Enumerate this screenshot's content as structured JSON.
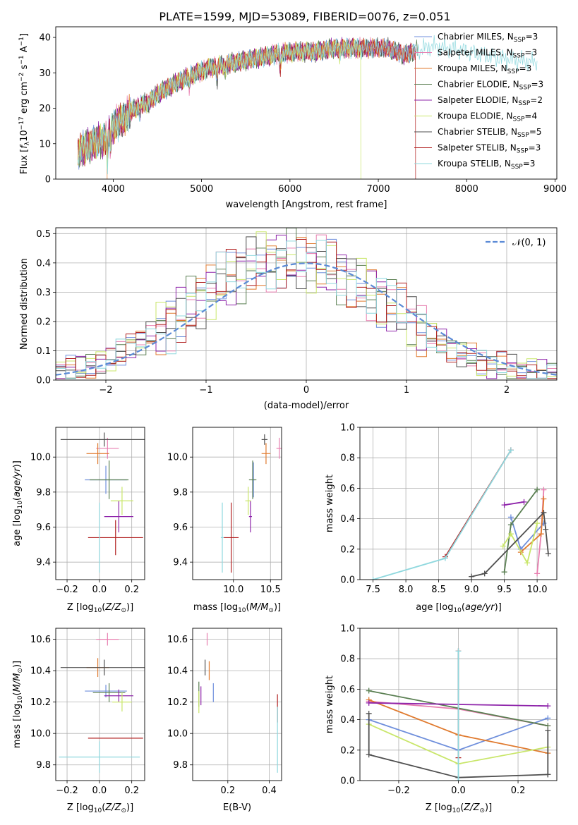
{
  "figure_title": "PLATE=1599, MJD=53089, FIBERID=0076, z=0.051",
  "colors": {
    "chabrier_miles": "#6f8fdc",
    "salpeter_miles": "#e87fb0",
    "kroupa_miles": "#e07a2e",
    "chabrier_elodie": "#5a7f52",
    "salpeter_elodie": "#8e24aa",
    "kroupa_elodie": "#c9e66a",
    "chabrier_stelib": "#4f4f4f",
    "salpeter_stelib": "#b22222",
    "kroupa_stelib": "#8fd8de",
    "normal": "#5b8ad6"
  },
  "chart_data": [
    {
      "id": "spectrum",
      "type": "line",
      "xlabel": "wavelength [Angstrom, rest frame]",
      "ylabel": "Flux [f_λ10^-17 erg cm^-2 s^-1 A^-1]",
      "xlim": [
        3350,
        9020
      ],
      "ylim": [
        0,
        43
      ],
      "xticks": [
        4000,
        5000,
        6000,
        7000,
        8000,
        9000
      ],
      "yticks": [
        0,
        10,
        20,
        30,
        40
      ],
      "grid": false,
      "legend_position": "upper-right",
      "legend": [
        "Chabrier MILES, N_SSP=3",
        "Salpeter MILES, N_SSP=3",
        "Kroupa MILES, N_SSP=3",
        "Chabrier ELODIE, N_SSP=3",
        "Salpeter ELODIE, N_SSP=2",
        "Kroupa ELODIE, N_SSP=4",
        "Chabrier STELIB, N_SSP=5",
        "Salpeter STELIB, N_SSP=3",
        "Kroupa STELIB, N_SSP=3"
      ],
      "continuum": {
        "x": [
          3600,
          3700,
          3800,
          3900,
          4000,
          4100,
          4200,
          4300,
          4400,
          4500,
          4700,
          4900,
          5100,
          5300,
          5500,
          5700,
          5900,
          6100,
          6300,
          6500,
          6700,
          6900,
          7100,
          7300,
          7400,
          7600,
          7800,
          8000,
          8200,
          8400,
          8600,
          8800
        ],
        "y": [
          8,
          9,
          10.5,
          11,
          15,
          17,
          19,
          21,
          21.5,
          24,
          27,
          29.5,
          31.5,
          32.5,
          33.5,
          34.5,
          35.5,
          36,
          36,
          37,
          37,
          37,
          37,
          35,
          36,
          37.5,
          37,
          36,
          35,
          34,
          33.5,
          33
        ]
      },
      "series_end_wavelength": [
        7420,
        7430,
        7400,
        7450,
        7400,
        6800,
        7420,
        7420,
        8800
      ],
      "dropouts": [
        {
          "series": "Kroupa ELODIE",
          "wavelength": 6800
        },
        {
          "series": "Salpeter STELIB",
          "wavelength": 7420
        },
        {
          "series": "Kroupa MILES",
          "wavelength": 3930
        }
      ]
    },
    {
      "id": "residual_histogram",
      "type": "line",
      "xlabel": "(data-model)/error",
      "ylabel": "Normed distribution",
      "xlim": [
        -2.5,
        2.5
      ],
      "ylim": [
        0,
        0.52
      ],
      "xticks": [
        -2,
        -1,
        0,
        1,
        2
      ],
      "yticks": [
        0.0,
        0.1,
        0.2,
        0.3,
        0.4,
        0.5
      ],
      "grid": true,
      "legend_position": "upper-right",
      "legend": [
        "N(0,1)"
      ],
      "bin_width": 0.1,
      "series_histogram": {
        "x_centers": [
          -2.45,
          -2.35,
          -2.25,
          -2.15,
          -2.05,
          -1.95,
          -1.85,
          -1.75,
          -1.65,
          -1.55,
          -1.45,
          -1.35,
          -1.25,
          -1.15,
          -1.05,
          -0.95,
          -0.85,
          -0.75,
          -0.65,
          -0.55,
          -0.45,
          -0.35,
          -0.25,
          -0.15,
          -0.05,
          0.05,
          0.15,
          0.25,
          0.35,
          0.45,
          0.55,
          0.65,
          0.75,
          0.85,
          0.95,
          1.05,
          1.15,
          1.25,
          1.35,
          1.45,
          1.55,
          1.65,
          1.75,
          1.85,
          1.95,
          2.05,
          2.15,
          2.25,
          2.35,
          2.45
        ],
        "values": [
          0.03,
          0.04,
          0.04,
          0.05,
          0.07,
          0.07,
          0.09,
          0.12,
          0.13,
          0.15,
          0.17,
          0.2,
          0.22,
          0.25,
          0.28,
          0.31,
          0.33,
          0.35,
          0.37,
          0.39,
          0.4,
          0.41,
          0.41,
          0.41,
          0.4,
          0.4,
          0.39,
          0.38,
          0.36,
          0.34,
          0.32,
          0.3,
          0.28,
          0.25,
          0.23,
          0.2,
          0.17,
          0.15,
          0.13,
          0.11,
          0.09,
          0.08,
          0.06,
          0.05,
          0.05,
          0.04,
          0.03,
          0.03,
          0.02,
          0.02
        ]
      }
    },
    {
      "id": "z_vs_age",
      "type": "scatter",
      "xlabel": "Z [log10(Z/Z☉)]",
      "ylabel": "age [log10(age/yr)]",
      "xlim": [
        -0.27,
        0.28
      ],
      "ylim": [
        9.3,
        10.17
      ],
      "xticks": [
        -0.2,
        0.0,
        0.2
      ],
      "yticks": [
        9.4,
        9.6,
        9.8,
        10.0
      ],
      "grid": true,
      "points": [
        {
          "series": "Chabrier MILES",
          "x": 0.04,
          "y": 9.87,
          "xerr": 0.13,
          "yerr": 0.08
        },
        {
          "series": "Salpeter MILES",
          "x": 0.05,
          "y": 10.05,
          "xerr": 0.07,
          "yerr": 0.06
        },
        {
          "series": "Kroupa MILES",
          "x": -0.01,
          "y": 10.02,
          "xerr": 0.07,
          "yerr": 0.06
        },
        {
          "series": "Chabrier ELODIE",
          "x": 0.06,
          "y": 9.87,
          "xerr": 0.12,
          "yerr": 0.11
        },
        {
          "series": "Salpeter ELODIE",
          "x": 0.12,
          "y": 9.66,
          "xerr": 0.09,
          "yerr": 0.09
        },
        {
          "series": "Kroupa ELODIE",
          "x": 0.14,
          "y": 9.75,
          "xerr": 0.07,
          "yerr": 0.08
        },
        {
          "series": "Chabrier STELIB",
          "x": 0.03,
          "y": 10.1,
          "xerr": 0.27,
          "yerr": 0.04
        },
        {
          "series": "Salpeter STELIB",
          "x": 0.1,
          "y": 9.54,
          "xerr": 0.17,
          "yerr": 0.1
        },
        {
          "series": "Kroupa STELIB",
          "x": 0.0,
          "y": 9.54,
          "xerr": 0.0,
          "yerr": 0.2
        }
      ]
    },
    {
      "id": "mass_vs_age",
      "type": "scatter",
      "xlabel": "mass [log10(M/M☉)]",
      "ylabel": "",
      "xlim": [
        9.45,
        10.65
      ],
      "ylim": [
        9.3,
        10.17
      ],
      "xticks": [
        10.0,
        10.5
      ],
      "yticks": [
        9.4,
        9.6,
        9.8,
        10.0
      ],
      "grid": true,
      "points": [
        {
          "series": "Chabrier MILES",
          "x": 10.27,
          "y": 9.87,
          "xerr": 0.02,
          "yerr": 0.1
        },
        {
          "series": "Salpeter MILES",
          "x": 10.62,
          "y": 10.05,
          "xerr": 0.04,
          "yerr": 0.06
        },
        {
          "series": "Kroupa MILES",
          "x": 10.44,
          "y": 10.02,
          "xerr": 0.06,
          "yerr": 0.06
        },
        {
          "series": "Chabrier ELODIE",
          "x": 10.26,
          "y": 9.87,
          "xerr": 0.05,
          "yerr": 0.11
        },
        {
          "series": "Salpeter ELODIE",
          "x": 10.23,
          "y": 9.66,
          "xerr": 0.02,
          "yerr": 0.09
        },
        {
          "series": "Kroupa ELODIE",
          "x": 10.2,
          "y": 9.75,
          "xerr": 0.04,
          "yerr": 0.08
        },
        {
          "series": "Chabrier STELIB",
          "x": 10.42,
          "y": 10.1,
          "xerr": 0.04,
          "yerr": 0.03
        },
        {
          "series": "Salpeter STELIB",
          "x": 9.97,
          "y": 9.54,
          "xerr": 0.1,
          "yerr": 0.2
        },
        {
          "series": "Kroupa STELIB",
          "x": 9.85,
          "y": 9.54,
          "xerr": 0.02,
          "yerr": 0.2
        }
      ]
    },
    {
      "id": "age_vs_mass_weight",
      "type": "line",
      "xlabel": "age [log10(age/yr)]",
      "ylabel": "mass weight",
      "xlim": [
        7.3,
        10.3
      ],
      "ylim": [
        0,
        1.0
      ],
      "xticks": [
        7.5,
        8.0,
        8.5,
        9.0,
        9.5,
        10.0
      ],
      "yticks": [
        0.0,
        0.2,
        0.4,
        0.6,
        0.8,
        1.0
      ],
      "grid": true,
      "series": [
        {
          "key": "chabrier_miles",
          "x": [
            9.6,
            9.75,
            10.1
          ],
          "y": [
            0.41,
            0.2,
            0.37
          ]
        },
        {
          "key": "salpeter_miles",
          "x": [
            10.0,
            10.06,
            10.1
          ],
          "y": [
            0.04,
            0.3,
            0.59
          ]
        },
        {
          "key": "kroupa_miles",
          "x": [
            9.75,
            10.06,
            10.1
          ],
          "y": [
            0.18,
            0.3,
            0.53
          ]
        },
        {
          "key": "chabrier_elodie",
          "x": [
            9.5,
            9.6,
            10.0
          ],
          "y": [
            0.05,
            0.36,
            0.59
          ]
        },
        {
          "key": "salpeter_elodie",
          "x": [
            9.5,
            9.8
          ],
          "y": [
            0.49,
            0.51
          ]
        },
        {
          "key": "kroupa_elodie",
          "x": [
            9.48,
            9.6,
            9.85,
            10.0
          ],
          "y": [
            0.22,
            0.3,
            0.11,
            0.37
          ]
        },
        {
          "key": "chabrier_stelib",
          "x": [
            9.0,
            9.2,
            10.1,
            10.13,
            10.17
          ],
          "y": [
            0.02,
            0.04,
            0.44,
            0.33,
            0.17
          ]
        },
        {
          "key": "salpeter_stelib",
          "x": [
            8.6,
            9.6
          ],
          "y": [
            0.15,
            0.85
          ]
        },
        {
          "key": "kroupa_stelib",
          "x": [
            7.5,
            8.6,
            9.6
          ],
          "y": [
            0.0,
            0.14,
            0.85
          ]
        }
      ]
    },
    {
      "id": "z_vs_mass",
      "type": "scatter",
      "xlabel": "Z [log10(Z/Z☉)]",
      "ylabel": "mass [log10(M/M☉)]",
      "xlim": [
        -0.27,
        0.28
      ],
      "ylim": [
        9.7,
        10.67
      ],
      "xticks": [
        -0.2,
        0.0,
        0.2
      ],
      "yticks": [
        9.8,
        10.0,
        10.2,
        10.4,
        10.6
      ],
      "grid": true,
      "points": [
        {
          "series": "Chabrier MILES",
          "x": 0.04,
          "y": 10.27,
          "xerr": 0.13,
          "yerr": 0.04
        },
        {
          "series": "Salpeter MILES",
          "x": 0.05,
          "y": 10.6,
          "xerr": 0.07,
          "yerr": 0.04
        },
        {
          "series": "Kroupa MILES",
          "x": -0.01,
          "y": 10.42,
          "xerr": 0.07,
          "yerr": 0.06
        },
        {
          "series": "Chabrier ELODIE",
          "x": 0.06,
          "y": 10.26,
          "xerr": 0.1,
          "yerr": 0.06
        },
        {
          "series": "Salpeter ELODIE",
          "x": 0.12,
          "y": 10.24,
          "xerr": 0.09,
          "yerr": 0.04
        },
        {
          "series": "Kroupa ELODIE",
          "x": 0.14,
          "y": 10.2,
          "xerr": 0.06,
          "yerr": 0.06
        },
        {
          "series": "Chabrier STELIB",
          "x": 0.03,
          "y": 10.42,
          "xerr": 0.27,
          "yerr": 0.05
        },
        {
          "series": "Salpeter STELIB",
          "x": 0.1,
          "y": 9.97,
          "xerr": 0.17,
          "yerr": 0.0
        },
        {
          "series": "Kroupa STELIB",
          "x": 0.0,
          "y": 9.85,
          "xerr": 0.25,
          "yerr": 0.1
        }
      ]
    },
    {
      "id": "ebv_vs_mass",
      "type": "scatter",
      "xlabel": "E(B-V)",
      "ylabel": "",
      "xlim": [
        0.03,
        0.46
      ],
      "ylim": [
        9.7,
        10.67
      ],
      "xticks": [
        0.2,
        0.4
      ],
      "yticks": [
        9.8,
        10.0,
        10.2,
        10.4,
        10.6
      ],
      "grid": true,
      "points": [
        {
          "series": "Chabrier MILES",
          "x": 0.13,
          "y": 10.26,
          "yerr": 0.06
        },
        {
          "series": "Salpeter MILES",
          "x": 0.1,
          "y": 10.6,
          "yerr": 0.04
        },
        {
          "series": "Kroupa MILES",
          "x": 0.11,
          "y": 10.4,
          "yerr": 0.06
        },
        {
          "series": "Chabrier ELODIE",
          "x": 0.06,
          "y": 10.25,
          "yerr": 0.08
        },
        {
          "series": "Salpeter ELODIE",
          "x": 0.07,
          "y": 10.24,
          "yerr": 0.06
        },
        {
          "series": "Kroupa ELODIE",
          "x": 0.06,
          "y": 10.2,
          "yerr": 0.07
        },
        {
          "series": "Chabrier STELIB",
          "x": 0.09,
          "y": 10.42,
          "yerr": 0.05
        },
        {
          "series": "Salpeter STELIB",
          "x": 0.44,
          "y": 10.16,
          "yerr": 0.09
        },
        {
          "series": "Kroupa STELIB",
          "x": 0.44,
          "y": 9.96,
          "yerr": 0.21
        }
      ]
    },
    {
      "id": "z_vs_mass_weight",
      "type": "line",
      "xlabel": "Z [log10(Z/Z☉)]",
      "ylabel": "mass weight",
      "xlim": [
        -0.33,
        0.33
      ],
      "ylim": [
        0,
        1.0
      ],
      "xticks": [
        -0.2,
        0.0,
        0.2
      ],
      "yticks": [
        0.0,
        0.2,
        0.4,
        0.6,
        0.8,
        1.0
      ],
      "grid": true,
      "series": [
        {
          "key": "chabrier_miles",
          "x": [
            -0.3,
            0.0,
            0.3
          ],
          "y": [
            0.4,
            0.2,
            0.41
          ]
        },
        {
          "key": "salpeter_miles",
          "x": [
            -0.3,
            0.0,
            0.3
          ],
          "y": [
            0.52,
            0.47,
            0.36
          ]
        },
        {
          "key": "kroupa_miles",
          "x": [
            -0.3,
            0.0,
            0.3
          ],
          "y": [
            0.53,
            0.3,
            0.18
          ]
        },
        {
          "key": "chabrier_elodie",
          "x": [
            -0.3,
            0.3
          ],
          "y": [
            0.59,
            0.36
          ]
        },
        {
          "key": "salpeter_elodie",
          "x": [
            -0.3,
            0.3
          ],
          "y": [
            0.51,
            0.49
          ]
        },
        {
          "key": "kroupa_elodie",
          "x": [
            -0.3,
            0.0,
            0.3
          ],
          "y": [
            0.37,
            0.11,
            0.22
          ]
        },
        {
          "key": "chabrier_stelib",
          "x": [
            -0.3,
            -0.3,
            0.0,
            0.3,
            0.3,
            0.3
          ],
          "y": [
            0.44,
            0.17,
            0.02,
            0.04,
            0.33,
            0.04
          ]
        },
        {
          "key": "salpeter_stelib",
          "x": [
            0.0,
            0.0
          ],
          "y": [
            0.15,
            0.85
          ]
        },
        {
          "key": "kroupa_stelib",
          "x": [
            0.0,
            0.0
          ],
          "y": [
            0.0,
            0.85
          ]
        }
      ]
    }
  ]
}
